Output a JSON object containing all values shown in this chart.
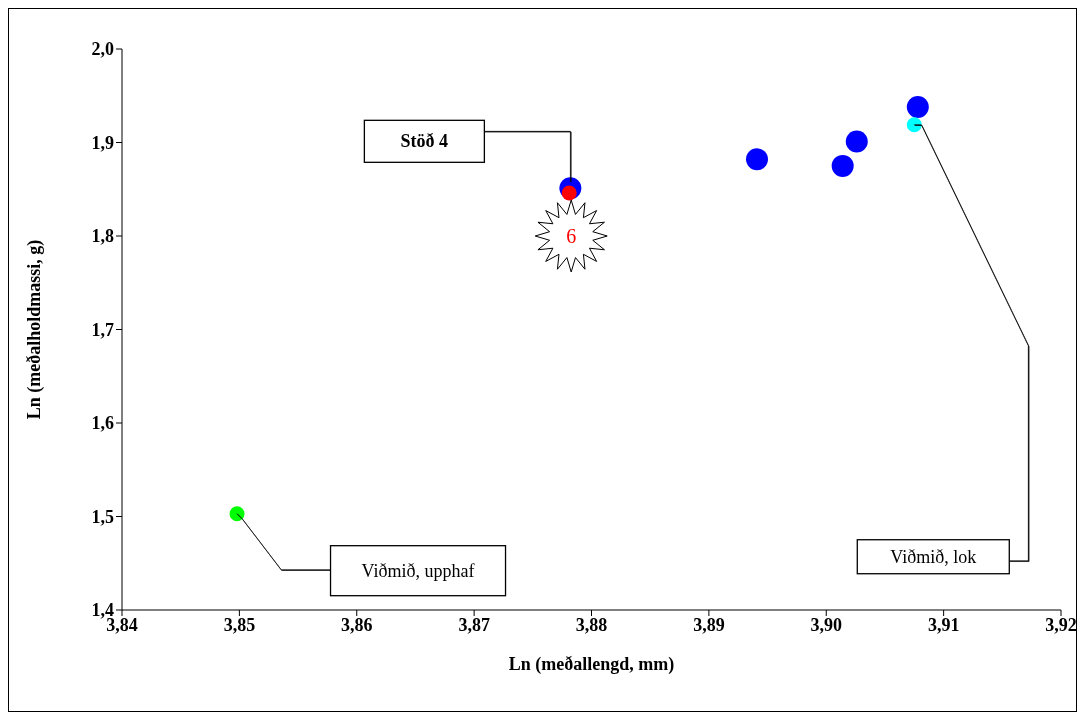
{
  "chart_data": {
    "type": "scatter",
    "xlabel": "Ln (meðallengd, mm)",
    "ylabel": "Ln (meðalholdmassi, g)",
    "xlim": [
      3.84,
      3.92
    ],
    "xticks": [
      {
        "value": 3.84,
        "label": "3,84"
      },
      {
        "value": 3.85,
        "label": "3,85"
      },
      {
        "value": 3.86,
        "label": "3,86"
      },
      {
        "value": 3.87,
        "label": "3,87"
      },
      {
        "value": 3.88,
        "label": "3,88"
      },
      {
        "value": 3.89,
        "label": "3,89"
      },
      {
        "value": 3.9,
        "label": "3,90"
      },
      {
        "value": 3.91,
        "label": "3,91"
      },
      {
        "value": 3.92,
        "label": "3,92"
      }
    ],
    "ylim": [
      1.4,
      2.0
    ],
    "yticks": [
      {
        "value": 1.4,
        "label": "1,4"
      },
      {
        "value": 1.5,
        "label": "1,5"
      },
      {
        "value": 1.6,
        "label": "1,6"
      },
      {
        "value": 1.7,
        "label": "1,7"
      },
      {
        "value": 1.8,
        "label": "1,8"
      },
      {
        "value": 1.9,
        "label": "1,9"
      },
      {
        "value": 2.0,
        "label": "2,0"
      }
    ],
    "marker": "circle",
    "series": [
      {
        "color": "#0000ff",
        "x": [
          3.8782,
          3.8941,
          3.9014,
          3.9026,
          3.9078
        ],
        "values": [
          1.851,
          1.882,
          1.875,
          1.901,
          1.938
        ]
      },
      {
        "color": "#ff0000",
        "x": [
          3.8781
        ],
        "values": [
          1.846
        ]
      },
      {
        "color": "#00ff00",
        "x": [
          3.8498
        ],
        "values": [
          1.503
        ]
      },
      {
        "color": "#00ffff",
        "x": [
          3.9075
        ],
        "values": [
          1.919
        ]
      }
    ],
    "annotations": [
      "Stöð 4",
      "6",
      "Viðmið, upphaf",
      "Viðmið, lok"
    ]
  }
}
